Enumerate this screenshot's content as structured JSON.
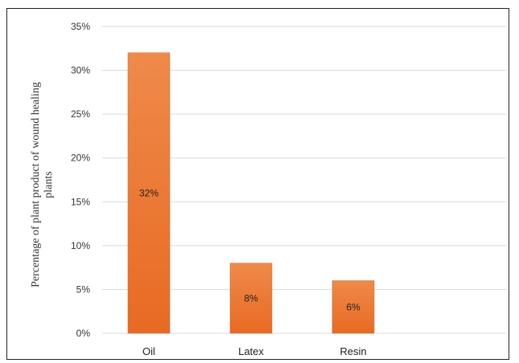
{
  "chart_data": {
    "type": "bar",
    "categories": [
      "Oil",
      "Latex",
      "Resin"
    ],
    "values": [
      32,
      8,
      6
    ],
    "data_labels": [
      "32%",
      "8%",
      "6%"
    ],
    "ylabel_line1": "Percentage of plant product of wound healing",
    "ylabel_line2": "plants",
    "ylim": [
      0,
      35
    ],
    "yticks": [
      0,
      5,
      10,
      15,
      20,
      25,
      30,
      35
    ],
    "ytick_labels": [
      "0%",
      "5%",
      "10%",
      "15%",
      "20%",
      "25%",
      "30%",
      "35%"
    ],
    "grid": true,
    "legend": "none",
    "colors": {
      "bar_top": "#ef8a4a",
      "bar_bottom": "#e86a23",
      "bar_edge": "#d9601d",
      "grid": "#d9d9d9"
    }
  }
}
